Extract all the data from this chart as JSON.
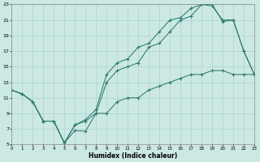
{
  "xlabel": "Humidex (Indice chaleur)",
  "background_color": "#cce8e4",
  "grid_color": "#aad4cc",
  "line_color": "#2e7b6c",
  "xlim": [
    0,
    23
  ],
  "ylim": [
    5,
    23
  ],
  "xtick_labels": [
    "0",
    "1",
    "2",
    "3",
    "4",
    "5",
    "6",
    "7",
    "8",
    "9",
    "10",
    "11",
    "12",
    "13",
    "14",
    "15",
    "16",
    "17",
    "18",
    "19",
    "20",
    "21",
    "22",
    "23"
  ],
  "ytick_vals": [
    5,
    7,
    9,
    11,
    13,
    15,
    17,
    19,
    21,
    23
  ],
  "line1_x": [
    0,
    1,
    2,
    3,
    4,
    5,
    6,
    7,
    8,
    9,
    10,
    11,
    12,
    13,
    14,
    15,
    16,
    17,
    18,
    19,
    20,
    21,
    22,
    23
  ],
  "line1_y": [
    12,
    11.5,
    10.5,
    8.0,
    8.0,
    5.2,
    6.8,
    6.7,
    9.0,
    9.0,
    10.5,
    11.0,
    11.0,
    12.0,
    12.5,
    13.0,
    13.5,
    14.0,
    14.0,
    14.5,
    14.5,
    14.0,
    14.0,
    14.0
  ],
  "line2_x": [
    0,
    1,
    2,
    3,
    4,
    5,
    6,
    7,
    8,
    9,
    10,
    11,
    12,
    13,
    14,
    15,
    16,
    17,
    18,
    19,
    20,
    21,
    22,
    23
  ],
  "line2_y": [
    12,
    11.5,
    10.5,
    8.0,
    8.0,
    5.2,
    7.5,
    8.2,
    9.5,
    14.0,
    15.5,
    16.0,
    17.5,
    18.0,
    19.5,
    21.0,
    21.3,
    22.5,
    23.0,
    22.8,
    21.0,
    21.0,
    17.0,
    14.0
  ],
  "line3_x": [
    0,
    1,
    2,
    3,
    4,
    5,
    6,
    7,
    8,
    9,
    10,
    11,
    12,
    13,
    14,
    15,
    16,
    17,
    18,
    19,
    20,
    21,
    22,
    23
  ],
  "line3_y": [
    12,
    11.5,
    10.5,
    8.0,
    8.0,
    5.2,
    7.5,
    8.0,
    9.0,
    13.0,
    14.5,
    15.0,
    15.5,
    17.5,
    18.0,
    19.5,
    21.0,
    21.5,
    23.0,
    23.0,
    20.8,
    21.0,
    17.0,
    14.0
  ]
}
